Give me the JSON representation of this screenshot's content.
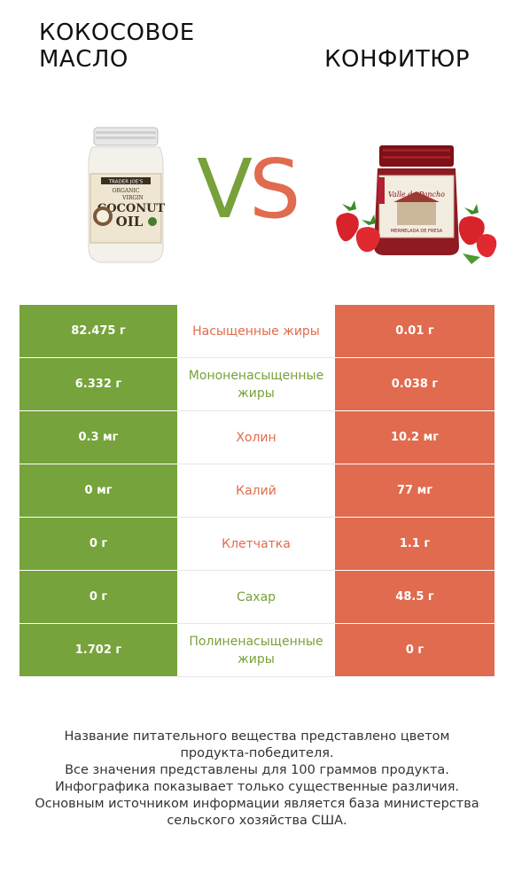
{
  "header": {
    "left_title": "КОКОСОВОЕ МАСЛО",
    "right_title": "КОНФИТЮР",
    "vs_v": "V",
    "vs_s": "S"
  },
  "images": {
    "left": {
      "label_brand": "TRADER JOE'S",
      "label_line1": "ORGANIC",
      "label_line2": "VIRGIN",
      "label_line3": "COCONUT",
      "label_line4": "OIL"
    },
    "right": {
      "label_title": "Valle de Pancho",
      "label_sub": "MERMELADA DE FRESA"
    }
  },
  "colors": {
    "left_accent": "#76a33b",
    "right_accent": "#e16b4e"
  },
  "rows": [
    {
      "left": "82.475 г",
      "nutrient": "Насыщенные жиры",
      "right": "0.01 г",
      "winner": "right"
    },
    {
      "left": "6.332 г",
      "nutrient": "Мононенасыщенные жиры",
      "right": "0.038 г",
      "winner": "left"
    },
    {
      "left": "0.3 мг",
      "nutrient": "Холин",
      "right": "10.2 мг",
      "winner": "right"
    },
    {
      "left": "0 мг",
      "nutrient": "Калий",
      "right": "77 мг",
      "winner": "right"
    },
    {
      "left": "0 г",
      "nutrient": "Клетчатка",
      "right": "1.1 г",
      "winner": "right"
    },
    {
      "left": "0 г",
      "nutrient": "Сахар",
      "right": "48.5 г",
      "winner": "left"
    },
    {
      "left": "1.702 г",
      "nutrient": "Полиненасыщенные жиры",
      "right": "0 г",
      "winner": "left"
    }
  ],
  "footer": {
    "line1": "Название питательного вещества представлено цветом",
    "line2": "продукта-победителя.",
    "line3": "Все значения представлены для 100 граммов продукта.",
    "line4": "Инфографика показывает только существенные различия.",
    "line5": "Основным источником информации является база министерства",
    "line6": "сельского хозяйства США."
  }
}
